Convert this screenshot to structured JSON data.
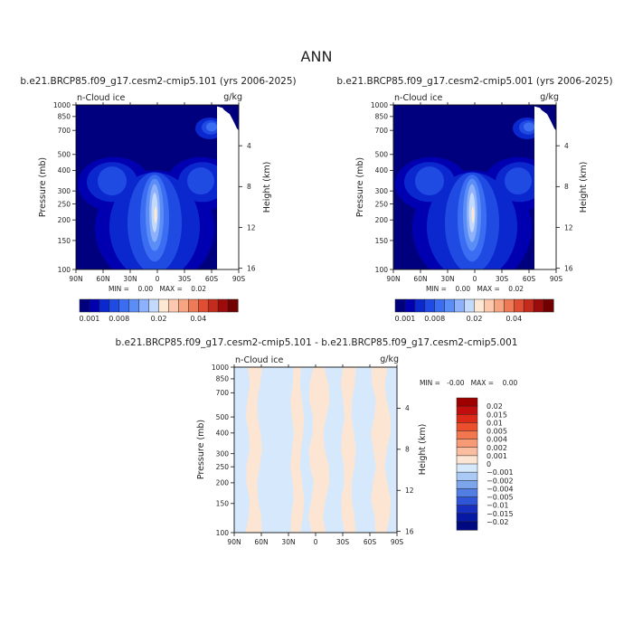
{
  "figure": {
    "title": "ANN",
    "panels": [
      {
        "id": "left",
        "case": "b.e21.BRCP85.f09_g17.cesm2-cmip5.101 (yrs 2006-2025)",
        "variable": "n-Cloud ice",
        "units": "g/kg",
        "stats": "MIN =    0.00   MAX =    0.02"
      },
      {
        "id": "right",
        "case": "b.e21.BRCP85.f09_g17.cesm2-cmip5.001 (yrs 2006-2025)",
        "variable": "n-Cloud ice",
        "units": "g/kg",
        "stats": "MIN =    0.00   MAX =    0.02"
      },
      {
        "id": "diff",
        "case": "b.e21.BRCP85.f09_g17.cesm2-cmip5.101 - b.e21.BRCP85.f09_g17.cesm2-cmip5.001",
        "variable": "n-Cloud ice",
        "units": "g/kg",
        "stats": "MIN =   -0.00   MAX =    0.00"
      }
    ]
  },
  "chart_data": [
    {
      "type": "heatmap",
      "panel": "left",
      "xlabel": "",
      "ylabel": "Pressure (mb)",
      "y2label": "Height (km)",
      "x_ticks": [
        "90N",
        "60N",
        "30N",
        "0",
        "30S",
        "60S",
        "90S"
      ],
      "x_values": [
        90,
        60,
        30,
        0,
        -30,
        -60,
        -90
      ],
      "xlim": [
        90,
        -90
      ],
      "y_ticks": [
        "100",
        "150",
        "200",
        "250",
        "300",
        "400",
        "500",
        "700",
        "850",
        "1000"
      ],
      "y_values": [
        100,
        150,
        200,
        250,
        300,
        400,
        500,
        700,
        850,
        1000
      ],
      "ylim": [
        1000,
        100
      ],
      "y_scale": "log",
      "y2_ticks": [
        "16",
        "12",
        "8",
        "4"
      ],
      "y2_values": [
        16,
        12,
        8,
        4
      ],
      "colorbar": {
        "labels": [
          "0.001",
          "0.008",
          "0.02",
          "0.04"
        ],
        "colors": [
          "#00007f",
          "#0000b0",
          "#0b28cf",
          "#1f4be3",
          "#3a6df2",
          "#5b8df7",
          "#8db1fb",
          "#c4dafd",
          "#fde8d4",
          "#fcc9ae",
          "#f7a482",
          "#ee7b57",
          "#df4d33",
          "#c42b1c",
          "#9d0b0b",
          "#730000"
        ]
      },
      "features": [
        {
          "name": "tropical upper-troposphere maximum",
          "lat": 3,
          "p": 230,
          "value": 0.02
        },
        {
          "name": "northern mid-latitude lobe",
          "lat": 48,
          "p": 350,
          "value": 0.006
        },
        {
          "name": "southern mid-latitude lobe",
          "lat": -48,
          "p": 350,
          "value": 0.006
        },
        {
          "name": "southern low-level maximum",
          "lat": -58,
          "p": 730,
          "value": 0.012
        }
      ]
    },
    {
      "type": "heatmap",
      "panel": "right",
      "xlabel": "",
      "ylabel": "Pressure (mb)",
      "y2label": "Height (km)",
      "x_ticks": [
        "90N",
        "60N",
        "30N",
        "0",
        "30S",
        "60S",
        "90S"
      ],
      "x_values": [
        90,
        60,
        30,
        0,
        -30,
        -60,
        -90
      ],
      "xlim": [
        90,
        -90
      ],
      "y_ticks": [
        "100",
        "150",
        "200",
        "250",
        "300",
        "400",
        "500",
        "700",
        "850",
        "1000"
      ],
      "y_values": [
        100,
        150,
        200,
        250,
        300,
        400,
        500,
        700,
        850,
        1000
      ],
      "ylim": [
        1000,
        100
      ],
      "y_scale": "log",
      "y2_ticks": [
        "16",
        "12",
        "8",
        "4"
      ],
      "y2_values": [
        16,
        12,
        8,
        4
      ],
      "colorbar": {
        "labels": [
          "0.001",
          "0.008",
          "0.02",
          "0.04"
        ],
        "colors": [
          "#00007f",
          "#0000b0",
          "#0b28cf",
          "#1f4be3",
          "#3a6df2",
          "#5b8df7",
          "#8db1fb",
          "#c4dafd",
          "#fde8d4",
          "#fcc9ae",
          "#f7a482",
          "#ee7b57",
          "#df4d33",
          "#c42b1c",
          "#9d0b0b",
          "#730000"
        ]
      },
      "features": [
        {
          "name": "tropical upper-troposphere maximum",
          "lat": 3,
          "p": 230,
          "value": 0.02
        },
        {
          "name": "northern mid-latitude lobe",
          "lat": 48,
          "p": 350,
          "value": 0.006
        },
        {
          "name": "southern mid-latitude lobe",
          "lat": -48,
          "p": 350,
          "value": 0.006
        },
        {
          "name": "southern low-level maximum",
          "lat": -58,
          "p": 730,
          "value": 0.012
        }
      ]
    },
    {
      "type": "heatmap",
      "panel": "diff",
      "xlabel": "",
      "ylabel": "Pressure (mb)",
      "y2label": "Height (km)",
      "x_ticks": [
        "90N",
        "60N",
        "30N",
        "0",
        "30S",
        "60S",
        "90S"
      ],
      "x_values": [
        90,
        60,
        30,
        0,
        -30,
        -60,
        -90
      ],
      "xlim": [
        90,
        -90
      ],
      "y_ticks": [
        "100",
        "150",
        "200",
        "250",
        "300",
        "400",
        "500",
        "700",
        "850",
        "1000"
      ],
      "y_values": [
        100,
        150,
        200,
        250,
        300,
        400,
        500,
        700,
        850,
        1000
      ],
      "ylim": [
        1000,
        100
      ],
      "y_scale": "log",
      "y2_ticks": [
        "16",
        "12",
        "8",
        "4"
      ],
      "y2_values": [
        16,
        12,
        8,
        4
      ],
      "colorbar": {
        "labels": [
          "0.02",
          "0.015",
          "0.01",
          "0.005",
          "0.004",
          "0.002",
          "0.001",
          "0",
          "−0.001",
          "−0.002",
          "−0.004",
          "−0.005",
          "−0.01",
          "−0.015",
          "−0.02"
        ],
        "colors": [
          "#9e0000",
          "#c00d0d",
          "#dd2a18",
          "#ec4f2d",
          "#f3774e",
          "#f79a76",
          "#fbbd9f",
          "#fde5d3",
          "#d6e8fb",
          "#aac9f4",
          "#7ca5ec",
          "#527ee3",
          "#2f56d6",
          "#1730c0",
          "#0718a2",
          "#000a80"
        ]
      },
      "fields": {
        "positive_color": "#fde5d3",
        "negative_color": "#d6e8fb",
        "positive_lat_bands": [
          [
            75,
            62
          ],
          [
            26,
            15
          ],
          [
            5,
            -12
          ],
          [
            -30,
            -42
          ],
          [
            -64,
            -80
          ]
        ]
      }
    }
  ]
}
